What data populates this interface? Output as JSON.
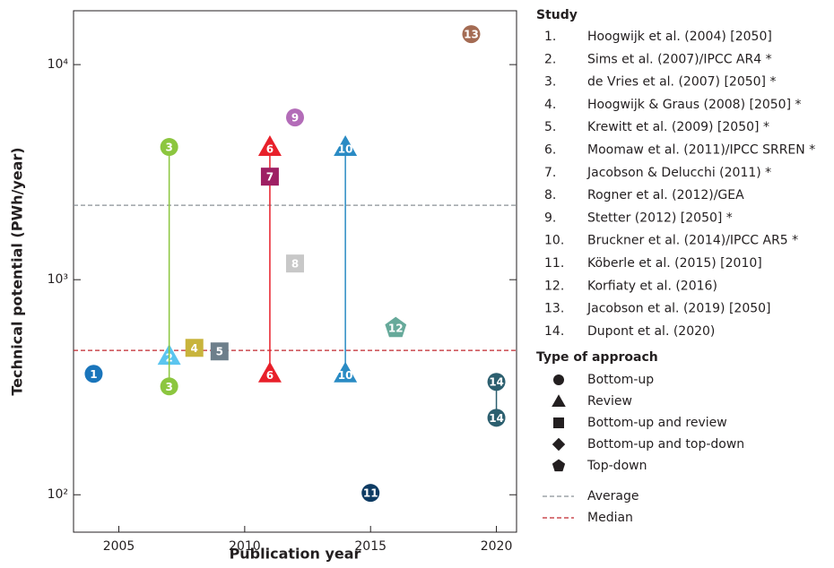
{
  "chart_data": {
    "type": "scatter",
    "x_label": "Publication year",
    "y_label": "Technical potential (PWh/year)",
    "xlim": [
      2003.2,
      2020.8
    ],
    "xticks": [
      2005,
      2010,
      2015,
      2020
    ],
    "ylim": [
      67,
      17800
    ],
    "y_scale": "log",
    "yticks": [
      {
        "value": 100,
        "label": "10²"
      },
      {
        "value": 1000,
        "label": "10³"
      },
      {
        "value": 10000,
        "label": "10⁴"
      }
    ],
    "legend_title": "Study",
    "series": [
      {
        "number": "1.",
        "marker_text": "1",
        "name": "Hoogwijk et al. (2004) [2050]",
        "marker": "circle",
        "color": "#1a75bb",
        "x": [
          2004
        ],
        "values": [
          365
        ]
      },
      {
        "number": "2.",
        "marker_text": "2",
        "name": "Sims et al. (2007)/IPCC AR4 *",
        "marker": "triangle",
        "color": "#5bc5ef",
        "x": [
          2007
        ],
        "values": [
          443
        ]
      },
      {
        "number": "3.",
        "marker_text": "3",
        "name": "de Vries et al. (2007) [2050] *",
        "marker": "circle",
        "color": "#8cc63f",
        "x": [
          2007,
          2007
        ],
        "values": [
          4140,
          319
        ]
      },
      {
        "number": "4.",
        "marker_text": "4",
        "name": "Hoogwijk & Graus (2008) [2050] *",
        "marker": "square",
        "color": "#c8b43c",
        "x": [
          2008
        ],
        "values": [
          482
        ]
      },
      {
        "number": "5.",
        "marker_text": "5",
        "name": "Krewitt et al. (2009) [2050] *",
        "marker": "square",
        "color": "#6d7f8b",
        "x": [
          2009
        ],
        "values": [
          464
        ]
      },
      {
        "number": "6.",
        "marker_text": "6",
        "name": "Moomaw et al. (2011)/IPCC SRREN *",
        "marker": "triangle",
        "color": "#e8202a",
        "x": [
          2011,
          2011
        ],
        "values": [
          4140,
          367
        ]
      },
      {
        "number": "7.",
        "marker_text": "7",
        "name": "Jacobson & Delucchi (2011) *",
        "marker": "square",
        "color": "#9e1f63",
        "x": [
          2011
        ],
        "values": [
          3014
        ]
      },
      {
        "number": "8.",
        "marker_text": "8",
        "name": "Rogner et al. (2012)/GEA",
        "marker": "square",
        "color": "#c8c8c8",
        "x": [
          2012
        ],
        "values": [
          1189
        ]
      },
      {
        "number": "9.",
        "marker_text": "9",
        "name": "Stetter (2012) [2050] *",
        "marker": "circle",
        "color": "#b36cb8",
        "x": [
          2012
        ],
        "values": [
          5680
        ]
      },
      {
        "number": "10.",
        "marker_text": "10",
        "name": "Bruckner et al. (2014)/IPCC AR5 *",
        "marker": "triangle",
        "color": "#2a8bc4",
        "x": [
          2014,
          2014
        ],
        "values": [
          4140,
          367
        ]
      },
      {
        "number": "11.",
        "marker_text": "11",
        "name": "Köberle et al. (2015) [2010]",
        "marker": "circle",
        "color": "#0e3b63",
        "x": [
          2015
        ],
        "values": [
          102
        ]
      },
      {
        "number": "12.",
        "marker_text": "12",
        "name": "Korfiaty et al. (2016)",
        "marker": "pentagon",
        "color": "#66a99a",
        "x": [
          2016
        ],
        "values": [
          596
        ]
      },
      {
        "number": "13.",
        "marker_text": "13",
        "name": "Jacobson et al. (2019) [2050]",
        "marker": "circle",
        "color": "#a46b53",
        "x": [
          2019
        ],
        "values": [
          13860
        ]
      },
      {
        "number": "14.",
        "marker_text": "14",
        "name": "Dupont et al. (2020)",
        "marker": "circle",
        "color": "#2c5f6f",
        "x": [
          2020,
          2020
        ],
        "values": [
          335,
          228
        ]
      }
    ],
    "approach_title": "Type of approach",
    "approaches": [
      {
        "name": "Bottom-up",
        "marker": "circle"
      },
      {
        "name": "Review",
        "marker": "triangle"
      },
      {
        "name": "Bottom-up and review",
        "marker": "square"
      },
      {
        "name": "Bottom-up and top-down",
        "marker": "diamond"
      },
      {
        "name": "Top-down",
        "marker": "pentagon"
      }
    ],
    "reference_lines": [
      {
        "name": "Average",
        "value": 2218,
        "color": "#8a9196",
        "dash": "5 3"
      },
      {
        "name": "Median",
        "value": 469,
        "color": "#c1272d",
        "dash": "5 3"
      }
    ]
  }
}
